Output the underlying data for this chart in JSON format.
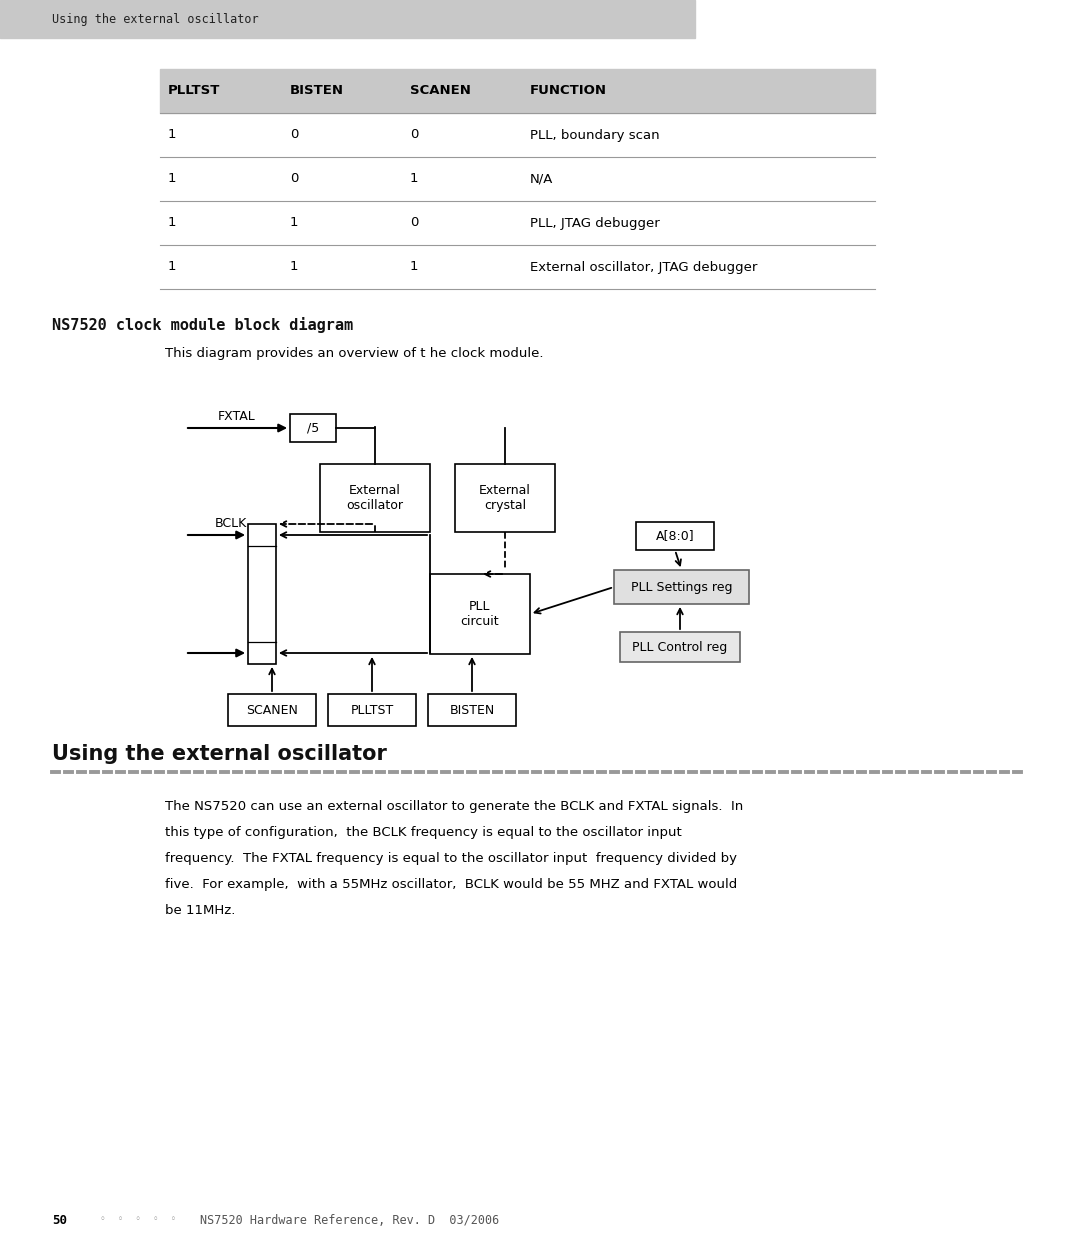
{
  "page_bg": "#ffffff",
  "header_bg": "#c8c8c8",
  "header_text": "Using the external oscillator",
  "header_text_color": "#333333",
  "table_header_bg": "#c8c8c8",
  "table_cols": [
    "PLLTST",
    "BISTEN",
    "SCANEN",
    "FUNCTION"
  ],
  "table_rows": [
    [
      "1",
      "0",
      "0",
      "PLL, boundary scan"
    ],
    [
      "1",
      "0",
      "1",
      "N/A"
    ],
    [
      "1",
      "1",
      "0",
      "PLL, JTAG debugger"
    ],
    [
      "1",
      "1",
      "1",
      "External oscillator, JTAG debugger"
    ]
  ],
  "section_title": "NS7520 clock module block diagram",
  "section_desc": "This diagram provides an overview of t he clock module.",
  "section2_title": "Using the external oscillator",
  "section2_body_lines": [
    "The NS7520 can use an external oscillator to generate the BCLK and FXTAL signals.  In",
    "this type of configuration,  the BCLK frequency is equal to the oscillator input",
    "frequency.  The FXTAL frequency is equal to the oscillator input  frequency divided by",
    "five.  For example,  with a 55MHz oscillator,  BCLK would be 55 MHZ and FXTAL would",
    "be 11MHz."
  ],
  "footer_page": "50",
  "footer_dots": "◦  ◦  ◦  ◦  ◦",
  "footer_ref": "NS7520 Hardware Reference, Rev. D  03/2006"
}
